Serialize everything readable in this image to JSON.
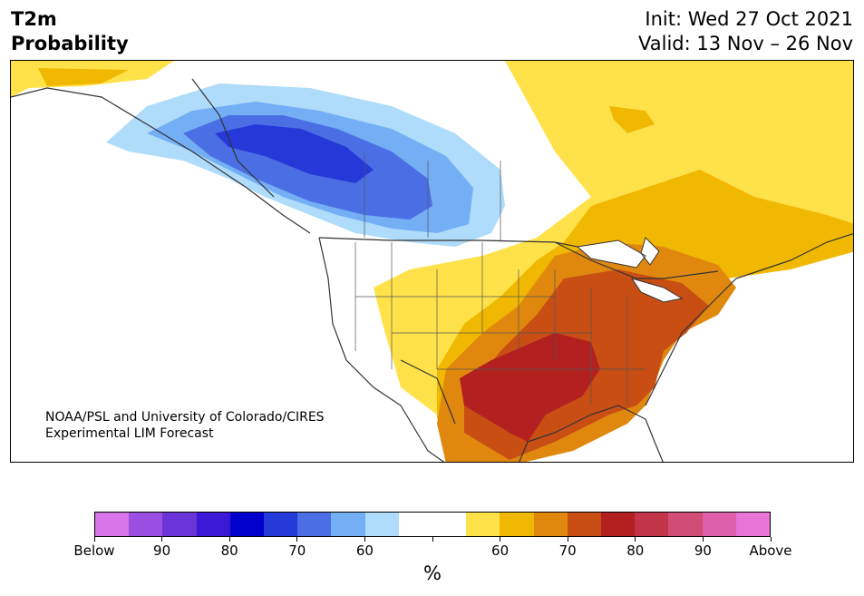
{
  "title": {
    "line1": "T2m",
    "line2": "Probability"
  },
  "dates": {
    "init": "Init: Wed 27 Oct 2021",
    "valid": "Valid: 13 Nov – 26 Nov"
  },
  "credit": {
    "line1": "NOAA/PSL and University of Colorado/CIRES",
    "line2": "Experimental LIM Forecast"
  },
  "colorbar": {
    "colors": [
      "#d774e8",
      "#9b4fe0",
      "#6a34d8",
      "#3a18d6",
      "#0000cc",
      "#2538d8",
      "#4a6fe4",
      "#74aef4",
      "#aedcfa",
      "#ffffff",
      "#ffffff",
      "#ffe24a",
      "#f0b800",
      "#e0880e",
      "#c84e14",
      "#b22020",
      "#c23448",
      "#d24c78",
      "#de60aa",
      "#e874d8"
    ],
    "tick_labels": [
      "Below",
      "90",
      "80",
      "70",
      "60",
      "",
      "60",
      "70",
      "80",
      "90",
      "Above"
    ],
    "units": "%"
  },
  "map": {
    "colors": {
      "land": "#ffffff",
      "lake": "#ffffff",
      "border": "#333333"
    }
  }
}
